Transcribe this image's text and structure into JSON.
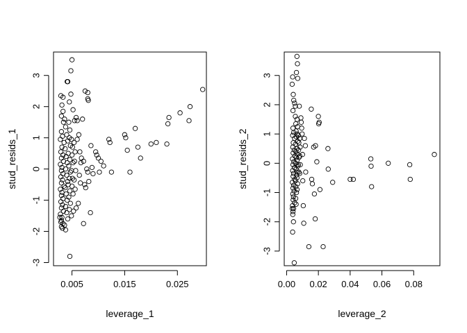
{
  "chart_data": [
    {
      "type": "scatter",
      "xlabel": "leverage_1",
      "ylabel": "stud_resids_1",
      "xlim": [
        0.0015,
        0.0305
      ],
      "ylim": [
        -3.1,
        3.75
      ],
      "xticks": [
        0.005,
        0.015,
        0.025
      ],
      "xtick_labels": [
        "0.005",
        "0.015",
        "0.025"
      ],
      "yticks": [
        -3,
        -2,
        -1,
        0,
        1,
        2,
        3
      ],
      "ytick_labels": [
        "-3",
        "-2",
        "-1",
        "0",
        "1",
        "2",
        "3"
      ],
      "marker": "open-circle",
      "grid": false,
      "points": [
        [
          0.003,
          1.2
        ],
        [
          0.0032,
          1.05
        ],
        [
          0.0028,
          0.95
        ],
        [
          0.0035,
          0.85
        ],
        [
          0.0031,
          0.7
        ],
        [
          0.0029,
          0.55
        ],
        [
          0.0033,
          0.45
        ],
        [
          0.003,
          0.35
        ],
        [
          0.0034,
          0.25
        ],
        [
          0.0028,
          0.15
        ],
        [
          0.0031,
          0.05
        ],
        [
          0.003,
          -0.05
        ],
        [
          0.0033,
          -0.15
        ],
        [
          0.0029,
          -0.25
        ],
        [
          0.0032,
          -0.35
        ],
        [
          0.003,
          -0.45
        ],
        [
          0.0035,
          -0.55
        ],
        [
          0.0028,
          -0.65
        ],
        [
          0.0031,
          -0.75
        ],
        [
          0.003,
          -0.85
        ],
        [
          0.0033,
          -0.95
        ],
        [
          0.0029,
          -1.05
        ],
        [
          0.0032,
          -1.15
        ],
        [
          0.003,
          -1.25
        ],
        [
          0.0034,
          -1.35
        ],
        [
          0.0028,
          -1.45
        ],
        [
          0.0031,
          -1.55
        ],
        [
          0.003,
          -1.65
        ],
        [
          0.0033,
          -1.75
        ],
        [
          0.003,
          -1.85
        ],
        [
          0.0036,
          1.6
        ],
        [
          0.0038,
          1.35
        ],
        [
          0.004,
          1.1
        ],
        [
          0.0042,
          0.9
        ],
        [
          0.0037,
          0.65
        ],
        [
          0.0039,
          0.4
        ],
        [
          0.0041,
          0.2
        ],
        [
          0.0038,
          0.0
        ],
        [
          0.004,
          -0.2
        ],
        [
          0.0042,
          -0.4
        ],
        [
          0.0037,
          -0.6
        ],
        [
          0.0039,
          -0.8
        ],
        [
          0.0041,
          -1.0
        ],
        [
          0.0038,
          -1.2
        ],
        [
          0.004,
          -1.4
        ],
        [
          0.0042,
          -1.6
        ],
        [
          0.0044,
          1.5
        ],
        [
          0.0046,
          1.25
        ],
        [
          0.0045,
          1.0
        ],
        [
          0.0047,
          0.75
        ],
        [
          0.0043,
          0.5
        ],
        [
          0.0046,
          0.3
        ],
        [
          0.0044,
          0.1
        ],
        [
          0.0047,
          -0.1
        ],
        [
          0.0045,
          -0.3
        ],
        [
          0.0043,
          -0.5
        ],
        [
          0.0046,
          -0.7
        ],
        [
          0.0044,
          -0.9
        ],
        [
          0.0047,
          -1.1
        ],
        [
          0.0045,
          -1.3
        ],
        [
          0.0049,
          0.95
        ],
        [
          0.0051,
          0.7
        ],
        [
          0.005,
          0.45
        ],
        [
          0.0052,
          0.2
        ],
        [
          0.0049,
          -0.05
        ],
        [
          0.0051,
          -0.3
        ],
        [
          0.005,
          -0.55
        ],
        [
          0.0052,
          -0.8
        ],
        [
          0.0054,
          0.85
        ],
        [
          0.0056,
          0.55
        ],
        [
          0.0055,
          0.25
        ],
        [
          0.0057,
          -0.05
        ],
        [
          0.0054,
          -0.35
        ],
        [
          0.0056,
          -0.65
        ],
        [
          0.0029,
          2.35
        ],
        [
          0.0031,
          2.05
        ],
        [
          0.0033,
          1.85
        ],
        [
          0.003,
          1.7
        ],
        [
          0.0034,
          1.5
        ],
        [
          0.0027,
          -1.55
        ],
        [
          0.0029,
          -1.7
        ],
        [
          0.0032,
          -1.9
        ],
        [
          0.0038,
          -1.95
        ],
        [
          0.0036,
          -1.8
        ],
        [
          0.0033,
          2.3
        ],
        [
          0.0041,
          2.8
        ],
        [
          0.0042,
          2.8
        ],
        [
          0.0048,
          3.15
        ],
        [
          0.005,
          3.5
        ],
        [
          0.0048,
          2.4
        ],
        [
          0.0045,
          2.15
        ],
        [
          0.0052,
          1.9
        ],
        [
          0.0055,
          1.55
        ],
        [
          0.0058,
          1.65
        ],
        [
          0.006,
          1.55
        ],
        [
          0.0046,
          -2.8
        ],
        [
          0.0049,
          -1.5
        ],
        [
          0.0053,
          -1.35
        ],
        [
          0.0058,
          -1.25
        ],
        [
          0.0062,
          -1.1
        ],
        [
          0.006,
          0.95
        ],
        [
          0.0063,
          1.1
        ],
        [
          0.0065,
          0.55
        ],
        [
          0.0067,
          0.2
        ],
        [
          0.0064,
          -0.2
        ],
        [
          0.0066,
          -0.45
        ],
        [
          0.0068,
          0.35
        ],
        [
          0.0072,
          0.25
        ],
        [
          0.007,
          1.6
        ],
        [
          0.0075,
          2.5
        ],
        [
          0.008,
          2.45
        ],
        [
          0.008,
          2.25
        ],
        [
          0.0081,
          2.2
        ],
        [
          0.0072,
          -1.75
        ],
        [
          0.0074,
          -0.5
        ],
        [
          0.0076,
          -0.6
        ],
        [
          0.0078,
          0.0
        ],
        [
          0.008,
          -0.1
        ],
        [
          0.0082,
          -0.4
        ],
        [
          0.0085,
          -1.4
        ],
        [
          0.0086,
          0.75
        ],
        [
          0.0088,
          0.05
        ],
        [
          0.009,
          -0.15
        ],
        [
          0.0095,
          0.55
        ],
        [
          0.0097,
          0.45
        ],
        [
          0.01,
          0.35
        ],
        [
          0.0102,
          -0.1
        ],
        [
          0.0105,
          0.25
        ],
        [
          0.011,
          0.1
        ],
        [
          0.012,
          0.95
        ],
        [
          0.0122,
          0.85
        ],
        [
          0.0125,
          -0.1
        ],
        [
          0.015,
          1.1
        ],
        [
          0.0152,
          1.0
        ],
        [
          0.0155,
          0.6
        ],
        [
          0.016,
          -0.1
        ],
        [
          0.017,
          1.3
        ],
        [
          0.0175,
          0.7
        ],
        [
          0.018,
          0.35
        ],
        [
          0.02,
          0.8
        ],
        [
          0.021,
          0.85
        ],
        [
          0.023,
          0.8
        ],
        [
          0.0232,
          1.45
        ],
        [
          0.0234,
          1.65
        ],
        [
          0.0255,
          1.8
        ],
        [
          0.0272,
          1.55
        ],
        [
          0.0274,
          2.0
        ],
        [
          0.0298,
          2.55
        ]
      ]
    },
    {
      "type": "scatter",
      "xlabel": "leverage_2",
      "ylabel": "stud_resids_2",
      "xlim": [
        -0.0015,
        0.0965
      ],
      "ylim": [
        -3.5,
        3.8
      ],
      "xticks": [
        0.0,
        0.02,
        0.04,
        0.06,
        0.08
      ],
      "xtick_labels": [
        "0.00",
        "0.02",
        "0.04",
        "0.06",
        "0.08"
      ],
      "yticks": [
        -3,
        -2,
        -1,
        0,
        1,
        2,
        3
      ],
      "ytick_labels": [
        "-3",
        "-2",
        "-1",
        "0",
        "1",
        "2",
        "3"
      ],
      "marker": "open-circle",
      "grid": false,
      "points": [
        [
          0.004,
          1.2
        ],
        [
          0.0045,
          1.05
        ],
        [
          0.0038,
          0.95
        ],
        [
          0.005,
          0.85
        ],
        [
          0.0042,
          0.7
        ],
        [
          0.0039,
          0.55
        ],
        [
          0.0048,
          0.45
        ],
        [
          0.0041,
          0.35
        ],
        [
          0.0052,
          0.25
        ],
        [
          0.0037,
          0.15
        ],
        [
          0.0046,
          0.05
        ],
        [
          0.004,
          -0.05
        ],
        [
          0.0049,
          -0.15
        ],
        [
          0.0038,
          -0.25
        ],
        [
          0.0044,
          -0.35
        ],
        [
          0.0041,
          -0.45
        ],
        [
          0.0051,
          -0.55
        ],
        [
          0.0036,
          -0.65
        ],
        [
          0.0045,
          -0.75
        ],
        [
          0.004,
          -0.85
        ],
        [
          0.0047,
          -0.95
        ],
        [
          0.0039,
          -1.05
        ],
        [
          0.0043,
          -1.15
        ],
        [
          0.0041,
          -1.25
        ],
        [
          0.005,
          -1.35
        ],
        [
          0.0037,
          -1.45
        ],
        [
          0.0044,
          -1.55
        ],
        [
          0.004,
          -1.65
        ],
        [
          0.0055,
          1.6
        ],
        [
          0.0058,
          1.35
        ],
        [
          0.006,
          1.1
        ],
        [
          0.0062,
          0.9
        ],
        [
          0.0056,
          0.65
        ],
        [
          0.0059,
          0.4
        ],
        [
          0.0061,
          0.2
        ],
        [
          0.0057,
          0.0
        ],
        [
          0.006,
          -0.2
        ],
        [
          0.0063,
          -0.4
        ],
        [
          0.0056,
          -0.6
        ],
        [
          0.0058,
          -0.8
        ],
        [
          0.0062,
          -1.0
        ],
        [
          0.0057,
          -1.2
        ],
        [
          0.006,
          -1.4
        ],
        [
          0.0066,
          1.5
        ],
        [
          0.0069,
          1.25
        ],
        [
          0.0067,
          1.0
        ],
        [
          0.007,
          0.75
        ],
        [
          0.0065,
          0.5
        ],
        [
          0.0068,
          0.3
        ],
        [
          0.0066,
          0.1
        ],
        [
          0.007,
          -0.1
        ],
        [
          0.0067,
          -0.3
        ],
        [
          0.0065,
          -0.5
        ],
        [
          0.0069,
          -0.7
        ],
        [
          0.0066,
          -0.9
        ],
        [
          0.0074,
          0.95
        ],
        [
          0.0077,
          0.7
        ],
        [
          0.0075,
          0.45
        ],
        [
          0.0078,
          0.2
        ],
        [
          0.0074,
          -0.05
        ],
        [
          0.0077,
          -0.3
        ],
        [
          0.0082,
          0.85
        ],
        [
          0.0085,
          0.55
        ],
        [
          0.0083,
          0.25
        ],
        [
          0.0086,
          -0.05
        ],
        [
          0.0082,
          -0.35
        ],
        [
          0.0035,
          2.7
        ],
        [
          0.0038,
          2.95
        ],
        [
          0.0042,
          2.35
        ],
        [
          0.0045,
          2.15
        ],
        [
          0.005,
          2.05
        ],
        [
          0.0055,
          1.95
        ],
        [
          0.004,
          1.8
        ],
        [
          0.0036,
          -1.55
        ],
        [
          0.0039,
          -1.75
        ],
        [
          0.0043,
          -2.0
        ],
        [
          0.0038,
          -2.35
        ],
        [
          0.0048,
          -3.4
        ],
        [
          0.0065,
          3.65
        ],
        [
          0.0068,
          3.4
        ],
        [
          0.0062,
          3.1
        ],
        [
          0.007,
          2.9
        ],
        [
          0.008,
          1.95
        ],
        [
          0.009,
          1.55
        ],
        [
          0.0092,
          1.4
        ],
        [
          0.0095,
          1.2
        ],
        [
          0.0098,
          1.0
        ],
        [
          0.01,
          0.3
        ],
        [
          0.0102,
          -0.6
        ],
        [
          0.0105,
          -1.45
        ],
        [
          0.0108,
          -2.05
        ],
        [
          0.0112,
          0.85
        ],
        [
          0.0118,
          0.6
        ],
        [
          0.012,
          -0.3
        ],
        [
          0.014,
          -2.85
        ],
        [
          0.0155,
          1.85
        ],
        [
          0.0158,
          -0.55
        ],
        [
          0.0162,
          -0.7
        ],
        [
          0.017,
          0.55
        ],
        [
          0.0175,
          -1.05
        ],
        [
          0.018,
          -1.9
        ],
        [
          0.0182,
          0.6
        ],
        [
          0.019,
          0.05
        ],
        [
          0.02,
          1.6
        ],
        [
          0.0202,
          1.35
        ],
        [
          0.0205,
          1.4
        ],
        [
          0.021,
          -0.9
        ],
        [
          0.023,
          -2.85
        ],
        [
          0.026,
          0.5
        ],
        [
          0.0262,
          -0.2
        ],
        [
          0.029,
          -0.65
        ],
        [
          0.04,
          -0.55
        ],
        [
          0.042,
          -0.55
        ],
        [
          0.053,
          0.15
        ],
        [
          0.0532,
          -0.1
        ],
        [
          0.0535,
          -0.8
        ],
        [
          0.064,
          0.0
        ],
        [
          0.0775,
          -0.05
        ],
        [
          0.0778,
          -0.55
        ],
        [
          0.093,
          0.3
        ]
      ]
    }
  ]
}
